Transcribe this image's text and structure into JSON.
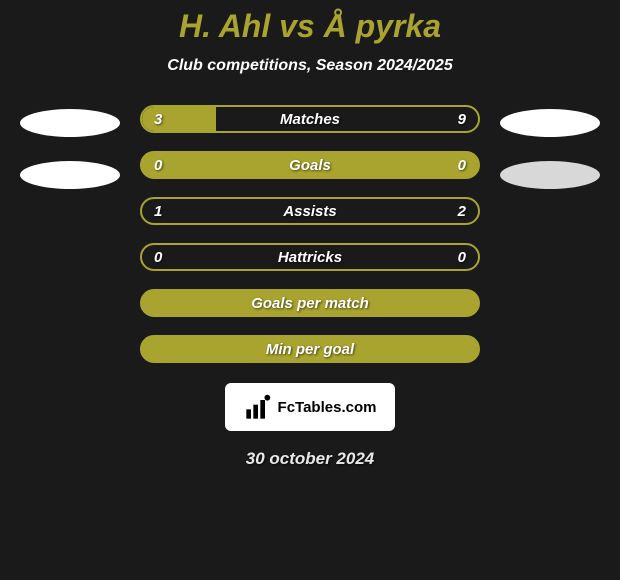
{
  "title": "H. Ahl vs Å pyrka",
  "subtitle": "Club competitions, Season 2024/2025",
  "date": "30 october 2024",
  "fctables_label": "FcTables.com",
  "accent_color": "#a8a42f",
  "background_color": "#1a1a1a",
  "stats": [
    {
      "label": "Matches",
      "left_value": "3",
      "right_value": "9",
      "left_num": 3,
      "right_num": 9,
      "left_fill_pct": 22,
      "full_fill": false
    },
    {
      "label": "Goals",
      "left_value": "0",
      "right_value": "0",
      "left_num": 0,
      "right_num": 0,
      "left_fill_pct": 100,
      "full_fill": true
    },
    {
      "label": "Assists",
      "left_value": "1",
      "right_value": "2",
      "left_num": 1,
      "right_num": 2,
      "left_fill_pct": 0,
      "full_fill": false
    },
    {
      "label": "Hattricks",
      "left_value": "0",
      "right_value": "0",
      "left_num": 0,
      "right_num": 0,
      "left_fill_pct": 0,
      "full_fill": false
    },
    {
      "label": "Goals per match",
      "left_value": "",
      "right_value": "",
      "left_num": 0,
      "right_num": 0,
      "left_fill_pct": 100,
      "full_fill": true
    },
    {
      "label": "Min per goal",
      "left_value": "",
      "right_value": "",
      "left_num": 0,
      "right_num": 0,
      "left_fill_pct": 100,
      "full_fill": true
    }
  ]
}
